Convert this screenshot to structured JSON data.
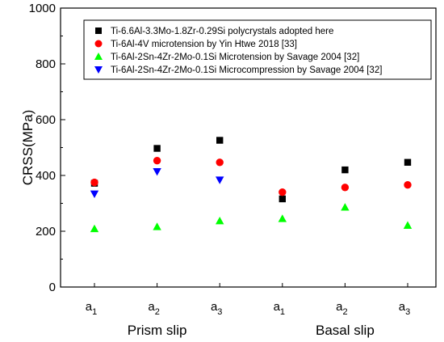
{
  "chart_data": {
    "type": "scatter",
    "ylabel": "CRSS(MPa)",
    "ylim": [
      0,
      1000
    ],
    "yticks": [
      "0",
      "200",
      "400",
      "600",
      "800",
      "1000"
    ],
    "categories": [
      {
        "base": "a",
        "sub": "1"
      },
      {
        "base": "a",
        "sub": "2"
      },
      {
        "base": "a",
        "sub": "3"
      },
      {
        "base": "a",
        "sub": "1"
      },
      {
        "base": "a",
        "sub": "2"
      },
      {
        "base": "a",
        "sub": "3"
      }
    ],
    "groups": [
      {
        "label": "Prism slip",
        "span": [
          0,
          2
        ]
      },
      {
        "label": "Basal slip",
        "span": [
          3,
          5
        ]
      }
    ],
    "legend_position": "top",
    "series": [
      {
        "name": "Ti-6.6Al-3.3Mo-1.8Zr-0.29Si polycrystals adopted here",
        "marker": "square",
        "color": "#000000",
        "values": [
          372,
          497,
          526,
          316,
          420,
          447
        ]
      },
      {
        "name": "Ti-6Al-4V microtension by Yin Htwe 2018 [33]",
        "marker": "circle",
        "color": "#ff0000",
        "values": [
          375,
          453,
          447,
          340,
          357,
          366
        ]
      },
      {
        "name": "Ti-6Al-2Sn-4Zr-2Mo-0.1Si Microtension by Savage 2004 [32]",
        "marker": "triangle-up",
        "color": "#00ff00",
        "values": [
          209,
          216,
          237,
          245,
          286,
          221
        ]
      },
      {
        "name": "Ti-6Al-2Sn-4Zr-2Mo-0.1Si Microcompression by Savage 2004 [32]",
        "marker": "triangle-down",
        "color": "#0000ff",
        "values": [
          334,
          414,
          384,
          null,
          null,
          null
        ]
      }
    ]
  }
}
